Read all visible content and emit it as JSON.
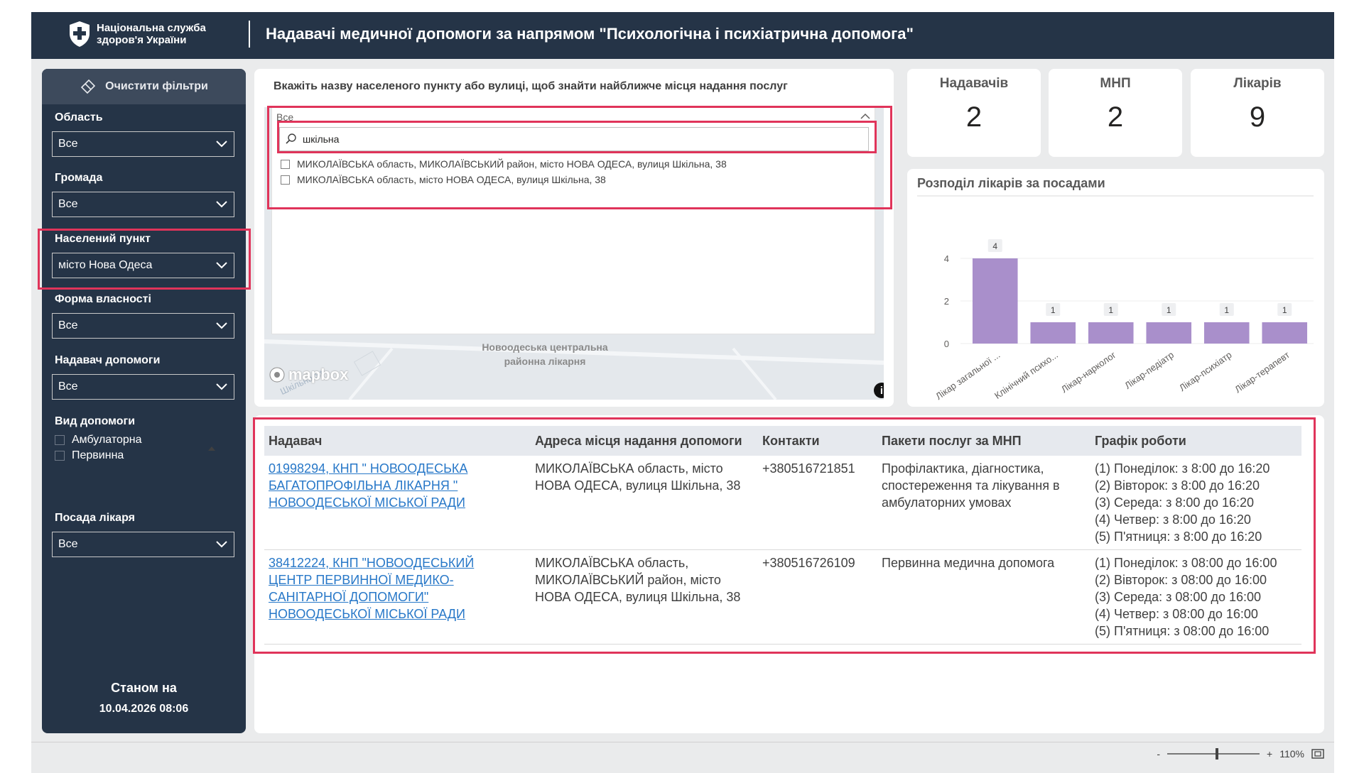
{
  "header": {
    "org_line1": "Національна служба",
    "org_line2": "здоров'я України",
    "title": "Надавачі медичної допомоги за напрямом \"Психологічна і психіатрична допомога\""
  },
  "sidebar": {
    "clear_filters": "Очистити фільтри",
    "filters": [
      {
        "label": "Область",
        "value": "Все"
      },
      {
        "label": "Громада",
        "value": "Все"
      },
      {
        "label": "Населений пункт",
        "value": "місто Нова Одеса"
      },
      {
        "label": "Форма власності",
        "value": "Все"
      },
      {
        "label": "Надавач допомоги",
        "value": "Все"
      }
    ],
    "care_type": {
      "label": "Вид допомоги",
      "options": [
        "Амбулаторна",
        "Первинна"
      ]
    },
    "doctor_position": {
      "label": "Посада лікаря",
      "value": "Все"
    },
    "as_of_label": "Станом на",
    "as_of_value": "10.04.2026 08:06"
  },
  "map": {
    "hint": "Вкажіть назву населеного пункту або вулиці, щоб знайти найближче місця надання послуг",
    "slicer_header": "Все",
    "search_value": "шкільна",
    "results": [
      "МИКОЛАЇВСЬКА область, МИКОЛАЇВСЬКИЙ район, місто НОВА ОДЕСА, вулиця Шкільна, 38",
      "МИКОЛАЇВСЬКА область, місто НОВА ОДЕСА, вулиця Шкільна, 38"
    ],
    "place_label_1": "Новоодеська центральна",
    "place_label_2": "районна лікарня",
    "street_label": "Шкільна St",
    "brand": "mapbox"
  },
  "kpis": [
    {
      "label": "Надавачів",
      "value": "2"
    },
    {
      "label": "МНП",
      "value": "2"
    },
    {
      "label": "Лікарів",
      "value": "9"
    }
  ],
  "chart_data": {
    "type": "bar",
    "title": "Розподіл лікарів за посадами",
    "categories": [
      "Лікар загальної ...",
      "Клінічний психо...",
      "Лікар-нарколог",
      "Лікар-педіатр",
      "Лікар-психіатр",
      "Лікар-терапевт"
    ],
    "values": [
      4,
      1,
      1,
      1,
      1,
      1
    ],
    "ylim": [
      0,
      4
    ],
    "yticks": [
      0,
      2,
      4
    ],
    "color": "#a98fcb",
    "grid": true
  },
  "table": {
    "columns": [
      "Надавач",
      "Адреса місця надання допомоги",
      "Контакти",
      "Пакети послуг за МНП",
      "Графік роботи"
    ],
    "rows": [
      {
        "provider": [
          "01998294, КНП \" НОВООДЕСЬКА",
          "БАГАТОПРОФІЛЬНА ЛІКАРНЯ \"",
          "НОВООДЕСЬКОЇ МІСЬКОЇ РАДИ"
        ],
        "address": [
          "МИКОЛАЇВСЬКА область, місто",
          "НОВА ОДЕСА, вулиця Шкільна, 38"
        ],
        "contact": "+380516721851",
        "packages": [
          "Профілактика, діагностика,",
          "спостереження та лікування в",
          "амбулаторних умовах"
        ],
        "schedule": [
          "(1) Понеділок: з 8:00 до 16:20",
          "(2) Вівторок: з 8:00 до 16:20",
          "(3) Середа: з 8:00 до 16:20",
          "(4) Четвер: з 8:00 до 16:20",
          "(5) П'ятниця: з 8:00 до 16:20"
        ]
      },
      {
        "provider": [
          "38412224, КНП \"НОВООДЕСЬКИЙ",
          "ЦЕНТР ПЕРВИННОЇ МЕДИКО-",
          "САНІТАРНОЇ ДОПОМОГИ\"",
          "НОВООДЕСЬКОЇ МІСЬКОЇ РАДИ"
        ],
        "address": [
          "МИКОЛАЇВСЬКА область,",
          "МИКОЛАЇВСЬКИЙ район, місто",
          "НОВА ОДЕСА, вулиця Шкільна, 38"
        ],
        "contact": "+380516726109",
        "packages": [
          "Первинна медична допомога"
        ],
        "schedule": [
          "(1) Понеділок: з 08:00 до 16:00",
          "(2) Вівторок: з 08:00 до 16:00",
          "(3) Середа: з 08:00 до 16:00",
          "(4) Четвер: з 08:00 до 16:00",
          "(5) П'ятниця: з 08:00 до 16:00"
        ]
      }
    ]
  },
  "status": {
    "zoom_minus": "-",
    "zoom_plus": "+",
    "zoom": "110%"
  }
}
